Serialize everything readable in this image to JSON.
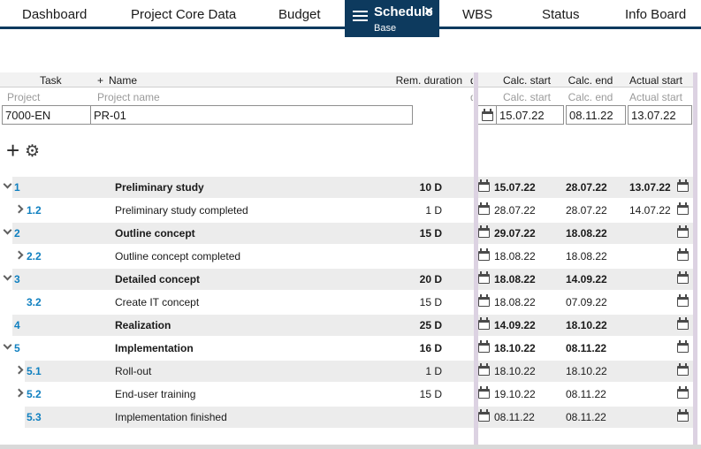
{
  "tabs": {
    "items": [
      {
        "label": "Dashboard"
      },
      {
        "label": "Project Core Data"
      },
      {
        "label": "Budget"
      },
      {
        "label": "Schedule",
        "sublabel": "Base",
        "active": true,
        "close_label": "×"
      },
      {
        "label": "WBS"
      },
      {
        "label": "Status"
      },
      {
        "label": "Info Board"
      }
    ]
  },
  "colors": {
    "active_tab": "#0d3a5e",
    "link_blue": "#1080c0",
    "row_shade": "#ececec",
    "freeze_line": "#dcd2e2"
  },
  "toolbar": {
    "add_label": "+",
    "settings_icon": "⚙"
  },
  "table": {
    "headers": {
      "task": "Task",
      "name_prefix": "+",
      "name": "Name",
      "rem_duration": "Rem. duration",
      "clipped_fragment": "d",
      "calc_start": "Calc. start",
      "calc_end": "Calc. end",
      "actual_start": "Actual start"
    },
    "filter": {
      "project": "Project",
      "project_name": "Project name",
      "clipped_fragment": "d",
      "calc_start": "Calc. start",
      "calc_end": "Calc. end",
      "actual_start": "Actual start"
    },
    "inputs": {
      "project_id": "7000-EN",
      "project_name": "PR-01",
      "calc_start": "15.07.22",
      "calc_end": "08.11.22",
      "actual_start": "13.07.22"
    },
    "rows": [
      {
        "level": 1,
        "expand": "down",
        "bold": true,
        "shaded": true,
        "num": "1",
        "name": "Preliminary study",
        "duration": "10 D",
        "calc_start": "15.07.22",
        "calc_end": "28.07.22",
        "actual_start": "13.07.22"
      },
      {
        "level": 2,
        "expand": "right",
        "bold": false,
        "shaded": false,
        "num": "1.2",
        "name": "Preliminary study completed",
        "duration": "1 D",
        "calc_start": "28.07.22",
        "calc_end": "28.07.22",
        "actual_start": "14.07.22"
      },
      {
        "level": 1,
        "expand": "down",
        "bold": true,
        "shaded": true,
        "num": "2",
        "name": "Outline concept",
        "duration": "15 D",
        "calc_start": "29.07.22",
        "calc_end": "18.08.22",
        "actual_start": ""
      },
      {
        "level": 2,
        "expand": "right",
        "bold": false,
        "shaded": false,
        "num": "2.2",
        "name": "Outline concept completed",
        "duration": "",
        "calc_start": "18.08.22",
        "calc_end": "18.08.22",
        "actual_start": ""
      },
      {
        "level": 1,
        "expand": "down",
        "bold": true,
        "shaded": true,
        "num": "3",
        "name": "Detailed concept",
        "duration": "20 D",
        "calc_start": "18.08.22",
        "calc_end": "14.09.22",
        "actual_start": ""
      },
      {
        "level": 2,
        "expand": null,
        "bold": false,
        "shaded": false,
        "num": "3.2",
        "name": "Create IT concept",
        "duration": "15 D",
        "calc_start": "18.08.22",
        "calc_end": "07.09.22",
        "actual_start": ""
      },
      {
        "level": 1,
        "expand": null,
        "bold": true,
        "shaded": true,
        "num": "4",
        "name": "Realization",
        "duration": "25 D",
        "calc_start": "14.09.22",
        "calc_end": "18.10.22",
        "actual_start": ""
      },
      {
        "level": 1,
        "expand": "down",
        "bold": true,
        "shaded": false,
        "num": "5",
        "name": "Implementation",
        "duration": "16 D",
        "calc_start": "18.10.22",
        "calc_end": "08.11.22",
        "actual_start": ""
      },
      {
        "level": 2,
        "expand": "right",
        "bold": false,
        "shaded": true,
        "num": "5.1",
        "name": "Roll-out",
        "duration": "1 D",
        "calc_start": "18.10.22",
        "calc_end": "18.10.22",
        "actual_start": ""
      },
      {
        "level": 2,
        "expand": "right",
        "bold": false,
        "shaded": false,
        "num": "5.2",
        "name": "End-user training",
        "duration": "15 D",
        "calc_start": "19.10.22",
        "calc_end": "08.11.22",
        "actual_start": ""
      },
      {
        "level": 2,
        "expand": null,
        "bold": false,
        "shaded": true,
        "num": "5.3",
        "name": "Implementation finished",
        "duration": "",
        "calc_start": "08.11.22",
        "calc_end": "08.11.22",
        "actual_start": ""
      }
    ]
  }
}
